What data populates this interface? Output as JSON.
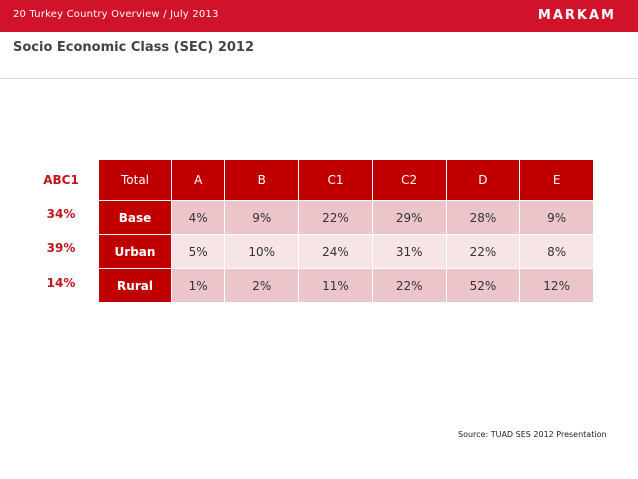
{
  "header": {
    "breadcrumb": "20  Turkey Country Overview / July 2013",
    "logo": "MARKAM"
  },
  "page_title": "Socio Economic Class (SEC) 2012",
  "side_column": {
    "header": "ABC1",
    "values": [
      "34%",
      "39%",
      "14%"
    ]
  },
  "table": {
    "columns": [
      "Total",
      "A",
      "B",
      "C1",
      "C2",
      "D",
      "E"
    ],
    "rows": [
      {
        "label": "Base",
        "cells": [
          "4%",
          "9%",
          "22%",
          "29%",
          "28%",
          "9%"
        ]
      },
      {
        "label": "Urban",
        "cells": [
          "5%",
          "10%",
          "24%",
          "31%",
          "22%",
          "8%"
        ]
      },
      {
        "label": "Rural",
        "cells": [
          "1%",
          "2%",
          "11%",
          "22%",
          "52%",
          "12%"
        ]
      }
    ]
  },
  "source": "Source: TUAD SES 2012 Presentation",
  "colors": {
    "brand_red": "#d0122a",
    "table_header_red": "#c00000",
    "abc1_text_red": "#c2161f",
    "cell_pink_dark": "#ecc5cb",
    "cell_pink_light": "#f7e4e7"
  }
}
